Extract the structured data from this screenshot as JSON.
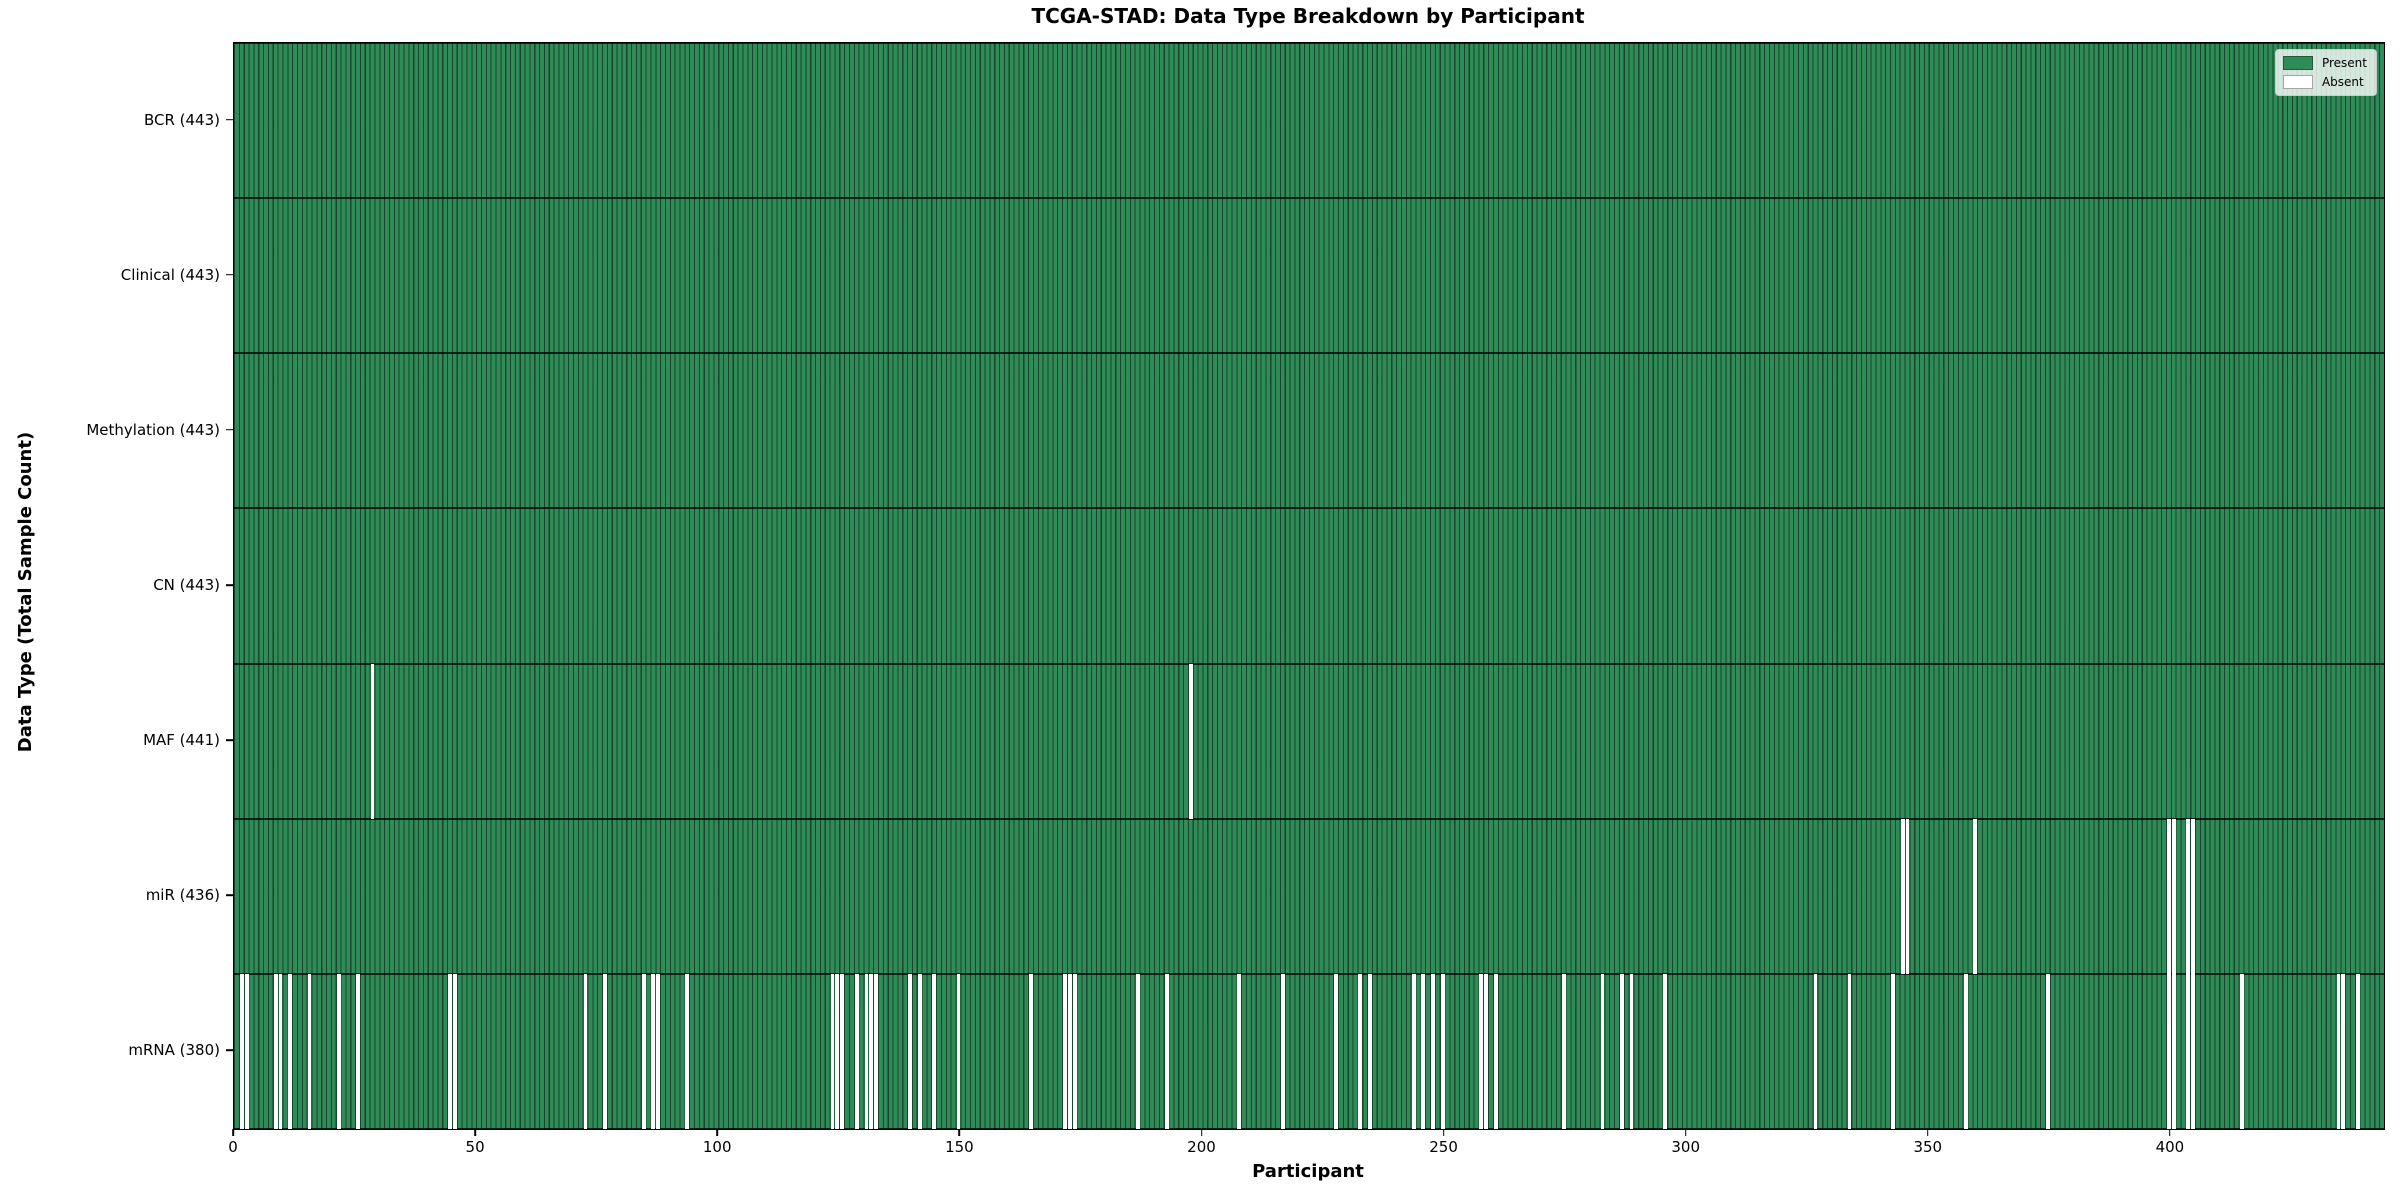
{
  "figure": {
    "background": "#ffffff"
  },
  "chart_data": {
    "type": "heatmap",
    "title": "TCGA-STAD: Data Type Breakdown by Participant",
    "xlabel": "Participant",
    "ylabel": "Data Type (Total Sample Count)",
    "x_ticks": [
      0,
      50,
      100,
      150,
      200,
      250,
      300,
      350,
      400
    ],
    "x_range": [
      0,
      443
    ],
    "n_participants": 443,
    "grid": false,
    "legend_position": "upper right",
    "legend": [
      {
        "key": "present",
        "label": "Present",
        "color": "#2f8b57"
      },
      {
        "key": "absent",
        "label": "Absent",
        "color": "#ffffff"
      }
    ],
    "colors": {
      "present": "#2f8b57",
      "absent": "#ffffff",
      "bar_edge": "rgba(0,0,0,0.5)",
      "row_edge": "rgba(0,0,0,0.75)"
    },
    "rows": [
      {
        "key": "bcr",
        "label": "BCR (443)",
        "data_type": "BCR",
        "total": 443,
        "absent_participants": []
      },
      {
        "key": "clinical",
        "label": "Clinical (443)",
        "data_type": "Clinical",
        "total": 443,
        "absent_participants": []
      },
      {
        "key": "methylation",
        "label": "Methylation (443)",
        "data_type": "Methylation",
        "total": 443,
        "absent_participants": []
      },
      {
        "key": "cn",
        "label": "CN (443)",
        "data_type": "CN",
        "total": 443,
        "absent_participants": []
      },
      {
        "key": "maf",
        "label": "MAF (441)",
        "data_type": "MAF",
        "total": 441,
        "absent_participants": [
          28,
          197
        ]
      },
      {
        "key": "mir",
        "label": "miR (436)",
        "data_type": "miR",
        "total": 436,
        "absent_participants": [
          344,
          345,
          359,
          399,
          400,
          403,
          404
        ]
      },
      {
        "key": "mrna",
        "label": "mRNA (380)",
        "data_type": "mRNA",
        "total": 380,
        "absent_participants": [
          1,
          2,
          8,
          9,
          11,
          15,
          21,
          25,
          44,
          45,
          72,
          76,
          84,
          86,
          87,
          93,
          123,
          124,
          125,
          128,
          130,
          131,
          132,
          139,
          141,
          144,
          149,
          164,
          171,
          172,
          173,
          186,
          192,
          207,
          216,
          227,
          232,
          234,
          243,
          245,
          247,
          249,
          257,
          258,
          260,
          274,
          282,
          286,
          288,
          295,
          326,
          333,
          342,
          357,
          374,
          399,
          400,
          403,
          404,
          414,
          434,
          435,
          438
        ]
      }
    ]
  }
}
